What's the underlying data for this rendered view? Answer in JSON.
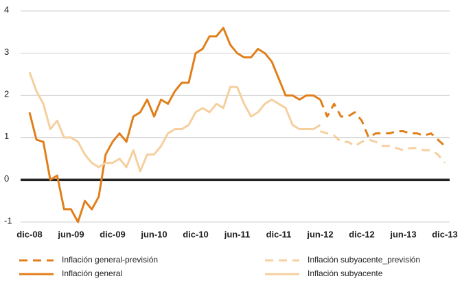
{
  "chart_data": {
    "type": "line",
    "categories": [
      "dic-08",
      null,
      null,
      null,
      null,
      null,
      "jun-09",
      null,
      null,
      null,
      null,
      null,
      "dic-09",
      null,
      null,
      null,
      null,
      null,
      "jun-10",
      null,
      null,
      null,
      null,
      null,
      "dic-10",
      null,
      null,
      null,
      null,
      null,
      "jun-11",
      null,
      null,
      null,
      null,
      null,
      "dic-11",
      null,
      null,
      null,
      null,
      null,
      "jun-12",
      null,
      null,
      null,
      null,
      null,
      "dic-12",
      null,
      null,
      null,
      null,
      null,
      "jun-13",
      null,
      null,
      null,
      null,
      null,
      "dic-13"
    ],
    "series": [
      {
        "name": "Inflación general-previsión",
        "color": "#e07f1a",
        "line_style": "dashed",
        "values": [
          null,
          null,
          null,
          null,
          null,
          null,
          null,
          null,
          null,
          null,
          null,
          null,
          null,
          null,
          null,
          null,
          null,
          null,
          null,
          null,
          null,
          null,
          null,
          null,
          null,
          null,
          null,
          null,
          null,
          null,
          null,
          null,
          null,
          null,
          null,
          null,
          null,
          null,
          null,
          null,
          null,
          null,
          1.9,
          1.5,
          1.8,
          1.5,
          1.5,
          1.6,
          1.4,
          1.0,
          1.1,
          1.1,
          1.1,
          1.15,
          1.15,
          1.1,
          1.1,
          1.05,
          1.1,
          0.95,
          0.8
        ]
      },
      {
        "name": "Inflación subyacente_previsión",
        "color": "#f5cf9e",
        "line_style": "dashed",
        "values": [
          null,
          null,
          null,
          null,
          null,
          null,
          null,
          null,
          null,
          null,
          null,
          null,
          null,
          null,
          null,
          null,
          null,
          null,
          null,
          null,
          null,
          null,
          null,
          null,
          null,
          null,
          null,
          null,
          null,
          null,
          null,
          null,
          null,
          null,
          null,
          null,
          null,
          null,
          null,
          null,
          null,
          null,
          1.15,
          1.1,
          1.05,
          0.9,
          0.9,
          0.8,
          0.9,
          0.95,
          0.9,
          0.8,
          0.8,
          0.75,
          0.7,
          0.75,
          0.75,
          0.7,
          0.7,
          0.6,
          0.4
        ]
      },
      {
        "name": "Inflación general",
        "color": "#e07f1a",
        "line_style": "solid",
        "values": [
          1.6,
          0.95,
          0.9,
          0.0,
          0.1,
          -0.7,
          -0.7,
          -1.0,
          -0.5,
          -0.7,
          -0.4,
          0.6,
          0.9,
          1.1,
          0.9,
          1.5,
          1.6,
          1.9,
          1.5,
          1.9,
          1.8,
          2.1,
          2.3,
          2.3,
          3.0,
          3.1,
          3.4,
          3.4,
          3.6,
          3.2,
          3.0,
          2.9,
          2.9,
          3.1,
          3.0,
          2.8,
          2.4,
          2.0,
          2.0,
          1.9,
          2.0,
          2.0,
          1.9,
          null,
          null,
          null,
          null,
          null,
          null,
          null,
          null,
          null,
          null,
          null,
          null,
          null,
          null,
          null,
          null,
          null,
          null
        ]
      },
      {
        "name": "Inflación subyacente",
        "color": "#f5cf9e",
        "line_style": "solid",
        "values": [
          2.55,
          2.1,
          1.8,
          1.2,
          1.4,
          1.0,
          1.0,
          0.9,
          0.6,
          0.4,
          0.3,
          0.4,
          0.4,
          0.5,
          0.3,
          0.7,
          0.2,
          0.6,
          0.6,
          0.8,
          1.1,
          1.2,
          1.2,
          1.3,
          1.6,
          1.7,
          1.6,
          1.8,
          1.7,
          2.2,
          2.2,
          1.8,
          1.5,
          1.6,
          1.8,
          1.9,
          1.8,
          1.7,
          1.3,
          1.2,
          1.2,
          1.2,
          1.3,
          null,
          null,
          null,
          null,
          null,
          null,
          null,
          null,
          null,
          null,
          null,
          null,
          null,
          null,
          null,
          null,
          null,
          null
        ]
      }
    ],
    "ylim": [
      -1,
      4
    ],
    "yticks": [
      -1,
      0,
      1,
      2,
      3,
      4
    ],
    "grid": true,
    "zero_line": true,
    "legend": "bottom"
  }
}
